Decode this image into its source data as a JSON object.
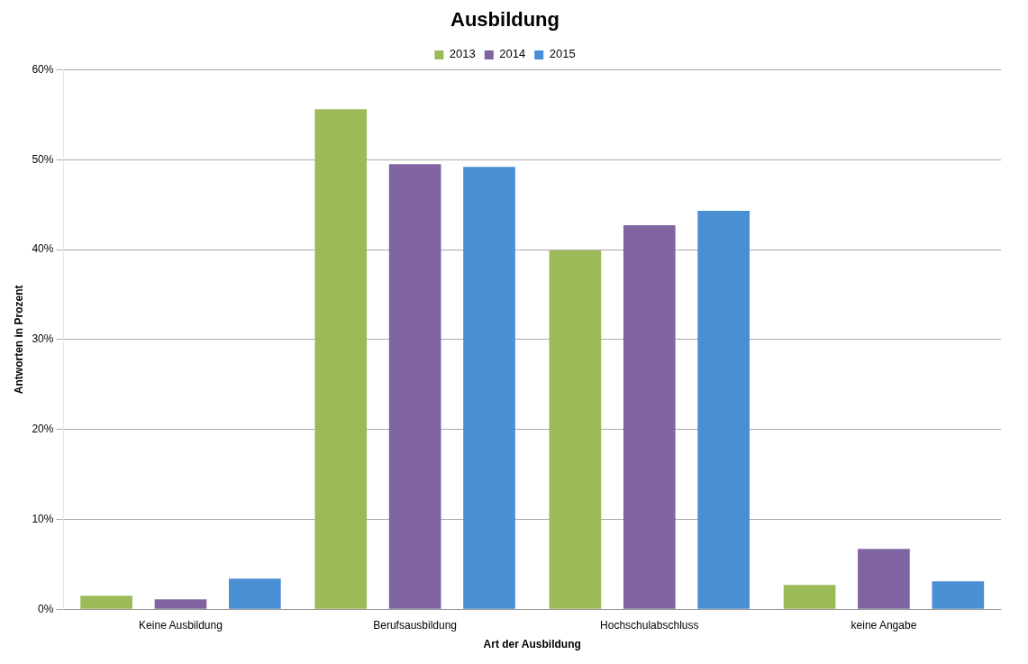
{
  "chart_data": {
    "type": "bar",
    "title": "Ausbildung",
    "xlabel": "Art der Ausbildung",
    "ylabel": "Antworten in Prozent",
    "categories": [
      "Keine Ausbildung",
      "Berufsausbildung",
      "Hochschulabschluss",
      "keine Angabe"
    ],
    "series": [
      {
        "name": "2013",
        "color": "#9bbb59",
        "values": [
          1.5,
          55.6,
          39.9,
          2.7
        ]
      },
      {
        "name": "2014",
        "color": "#8064a2",
        "values": [
          1.1,
          49.5,
          42.7,
          6.7
        ]
      },
      {
        "name": "2015",
        "color": "#4a8fd4",
        "values": [
          3.4,
          49.2,
          44.3,
          3.1
        ]
      }
    ],
    "ylim": [
      0,
      60
    ],
    "yticks": [
      {
        "value": 0,
        "label": "0%"
      },
      {
        "value": 10,
        "label": "10%"
      },
      {
        "value": 20,
        "label": "20%"
      },
      {
        "value": 30,
        "label": "30%"
      },
      {
        "value": 40,
        "label": "40%"
      },
      {
        "value": 50,
        "label": "50%"
      },
      {
        "value": 60,
        "label": "60%"
      }
    ],
    "grid": "y",
    "legend": "top"
  }
}
